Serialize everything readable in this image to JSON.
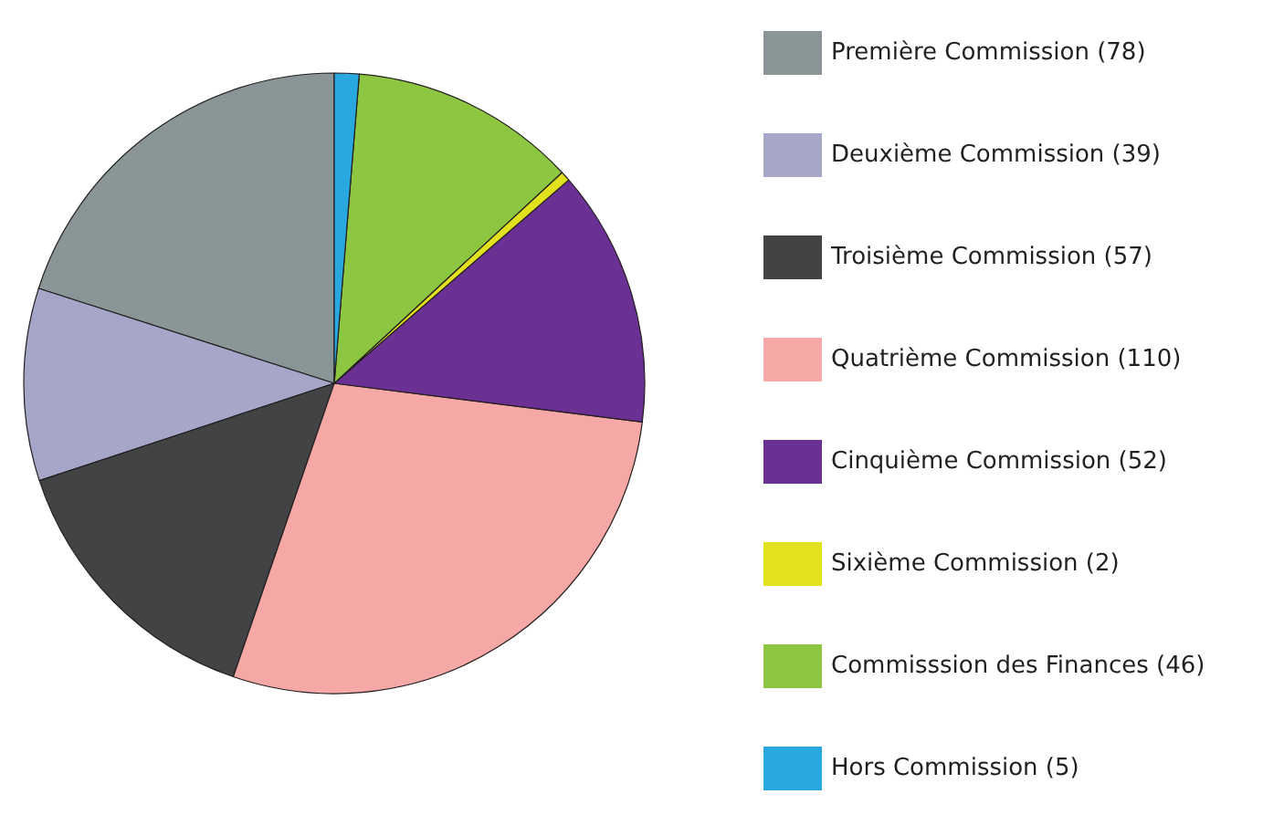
{
  "chart_data": {
    "type": "pie",
    "categories": [
      "Première Commission (78)",
      "Deuxième Commission (39)",
      "Troisième Commission (57)",
      "Quatrième Commission (110)",
      "Cinquième Commission (52)",
      "Sixième Commission (2)",
      "Commisssion des Finances (46)",
      "Hors Commission (5)"
    ],
    "values": [
      78,
      39,
      57,
      110,
      52,
      2,
      46,
      5
    ],
    "colors": [
      "#8a9597",
      "#a6a6c9",
      "#414345",
      "#f5a8a5",
      "#6a3093",
      "#e1e11f",
      "#8dc641",
      "#29a8e0"
    ],
    "legend": "right"
  }
}
